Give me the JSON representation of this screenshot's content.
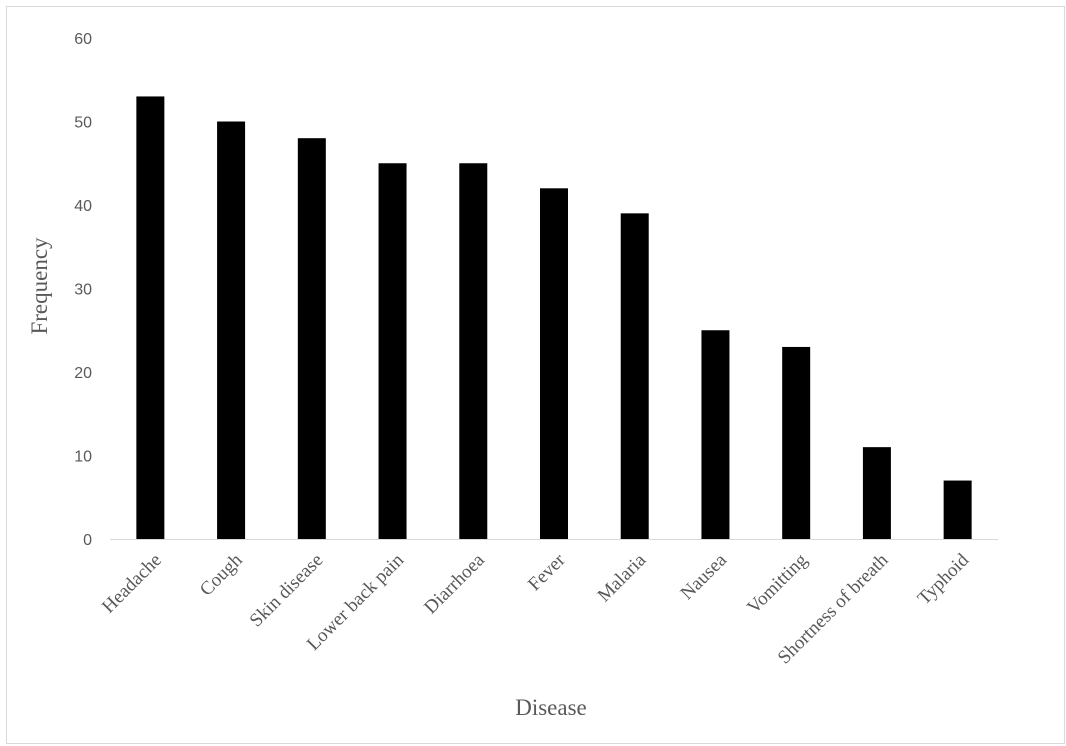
{
  "chart_data": {
    "type": "bar",
    "title": "",
    "xlabel": "Disease",
    "ylabel": "Frequency",
    "categories": [
      "Headache",
      "Cough",
      "Skin disease",
      "Lower back pain",
      "Diarrhoea",
      "Fever",
      "Malaria",
      "Nausea",
      "Vomitting",
      "Shortness of breath",
      "Typhoid"
    ],
    "values": [
      53,
      50,
      48,
      45,
      45,
      42,
      39,
      25,
      23,
      11,
      7
    ],
    "ylim": [
      0,
      60
    ],
    "yticks": [
      0,
      10,
      20,
      30,
      40,
      50,
      60
    ],
    "grid": false,
    "legend": "none",
    "bar_color": "#000000",
    "axis_color": "#d9d9d9",
    "text_color": "#595959"
  }
}
